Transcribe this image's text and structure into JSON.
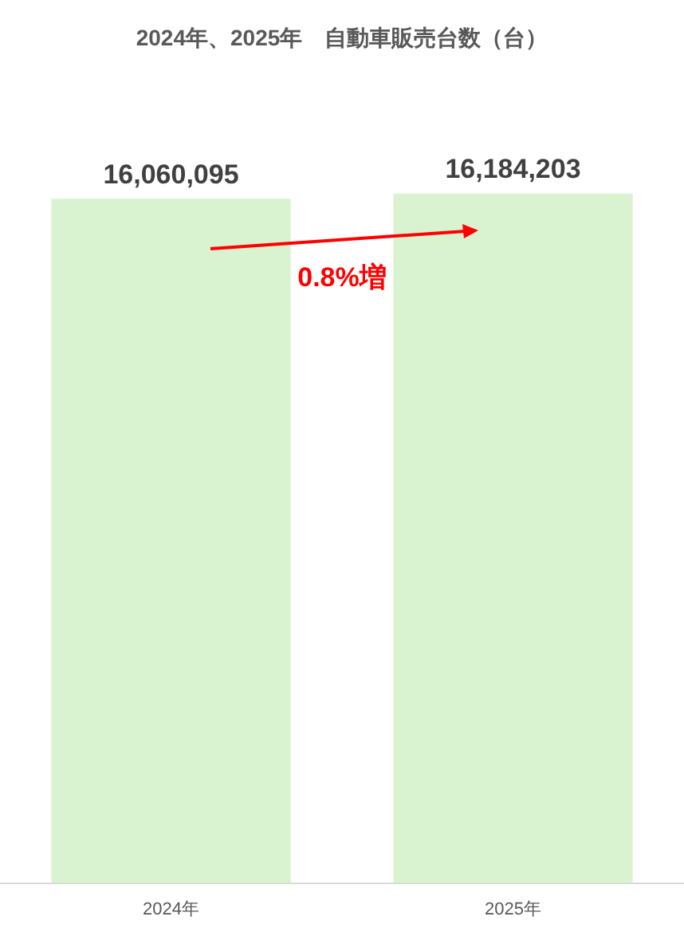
{
  "chart_data": {
    "type": "bar",
    "title": "2024年、2025年　自動車販売台数（台）",
    "categories": [
      "2024年",
      "2025年"
    ],
    "values": [
      16060095,
      16184203
    ],
    "color": "#d9f2d0",
    "value_labels": [
      "16,060,095",
      "16,184,203"
    ],
    "grid": false,
    "legend": false,
    "annotations": [
      "0.8%増"
    ]
  }
}
